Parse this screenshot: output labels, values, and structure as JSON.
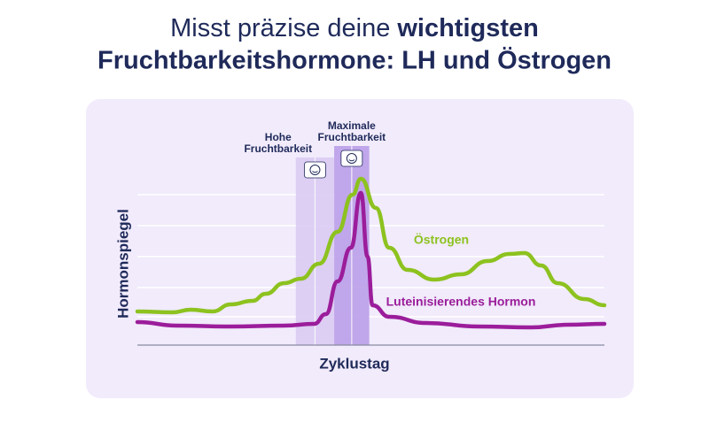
{
  "chart_data": {
    "type": "line",
    "title": [
      "Misst präzise deine",
      "wichtigsten",
      "Fruchtbarkeitshormone: LH und Östrogen"
    ],
    "x_label": "Zyklustag",
    "y_label": "Hormonspiegel",
    "xlim": [
      0,
      28
    ],
    "ylim": [
      0,
      100
    ],
    "bands": [
      {
        "label_lines": [
          "Hohe",
          "Fruchtbarkeit"
        ],
        "x": [
          9.5,
          11.8
        ],
        "color": "#d9c9f2"
      },
      {
        "label_lines": [
          "Maximale",
          "Fruchtbarkeit"
        ],
        "x": [
          11.8,
          13.9
        ],
        "color": "#b79ae6"
      }
    ],
    "series": [
      {
        "name": "Östrogen",
        "color": "#8dc21f",
        "x": [
          0,
          2.1,
          3.2,
          4.5,
          5.6,
          6.9,
          7.7,
          8.8,
          9.8,
          10.9,
          12,
          12.9,
          13.4,
          14.3,
          15.1,
          16.2,
          17.8,
          19.4,
          21,
          22.3,
          23.2,
          24.2,
          25.2,
          26.8,
          28
        ],
        "values": [
          19,
          18.5,
          20,
          19,
          23,
          25,
          29,
          35,
          37.5,
          46,
          64,
          85,
          94,
          77.5,
          55,
          42.5,
          37,
          40,
          47.5,
          51.5,
          52,
          45,
          35,
          26,
          22.5
        ]
      },
      {
        "name": "Luteinisierendes Hormon",
        "color": "#9b1d9b",
        "x": [
          0,
          2.4,
          5.6,
          8.8,
          10.6,
          11.3,
          12,
          12.8,
          13.4,
          13.8,
          14.1,
          15.1,
          17.3,
          20.5,
          23.6,
          25.8,
          28
        ],
        "values": [
          13,
          11,
          10.5,
          11,
          12,
          17.5,
          36,
          55,
          86,
          50,
          22.5,
          16,
          12.5,
          10.5,
          10,
          11.5,
          12
        ]
      }
    ]
  }
}
